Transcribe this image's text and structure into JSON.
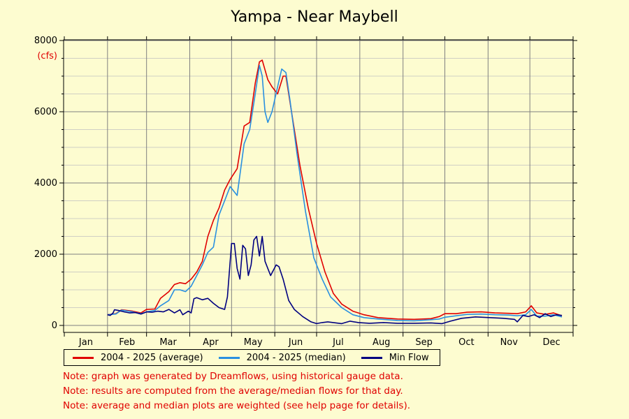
{
  "chart_data": {
    "type": "line",
    "title": "Yampa - Near Maybell",
    "unit_label": "(cfs)",
    "ylim": [
      0,
      8000
    ],
    "yticks": [
      0,
      2000,
      4000,
      6000,
      8000
    ],
    "ytick_labels": [
      "0",
      "2000",
      "4000",
      "6000",
      "8000"
    ],
    "x_domain_days": [
      1,
      366
    ],
    "months": [
      "Jan",
      "Feb",
      "Mar",
      "Apr",
      "May",
      "Jun",
      "Jul",
      "Aug",
      "Sep",
      "Oct",
      "Nov",
      "Dec"
    ],
    "grid": true,
    "legend_position": "bottom",
    "series": [
      {
        "name": "2004 - 2025 (average)",
        "color": "#e00000",
        "points": [
          [
            32,
            300
          ],
          [
            38,
            330
          ],
          [
            42,
            440
          ],
          [
            50,
            400
          ],
          [
            56,
            350
          ],
          [
            60,
            450
          ],
          [
            66,
            460
          ],
          [
            70,
            760
          ],
          [
            76,
            950
          ],
          [
            80,
            1150
          ],
          [
            84,
            1200
          ],
          [
            88,
            1170
          ],
          [
            92,
            1300
          ],
          [
            96,
            1500
          ],
          [
            100,
            1800
          ],
          [
            104,
            2500
          ],
          [
            108,
            2950
          ],
          [
            112,
            3300
          ],
          [
            116,
            3800
          ],
          [
            120,
            4100
          ],
          [
            125,
            4400
          ],
          [
            130,
            5600
          ],
          [
            134,
            5700
          ],
          [
            138,
            6800
          ],
          [
            141,
            7400
          ],
          [
            143,
            7450
          ],
          [
            147,
            6900
          ],
          [
            150,
            6700
          ],
          [
            154,
            6500
          ],
          [
            158,
            7000
          ],
          [
            160,
            7000
          ],
          [
            164,
            6000
          ],
          [
            170,
            4500
          ],
          [
            176,
            3300
          ],
          [
            182,
            2300
          ],
          [
            188,
            1500
          ],
          [
            194,
            900
          ],
          [
            200,
            600
          ],
          [
            208,
            400
          ],
          [
            216,
            300
          ],
          [
            226,
            220
          ],
          [
            240,
            180
          ],
          [
            252,
            170
          ],
          [
            264,
            190
          ],
          [
            270,
            250
          ],
          [
            274,
            330
          ],
          [
            282,
            330
          ],
          [
            290,
            370
          ],
          [
            300,
            380
          ],
          [
            310,
            350
          ],
          [
            320,
            340
          ],
          [
            326,
            330
          ],
          [
            332,
            380
          ],
          [
            336,
            550
          ],
          [
            340,
            350
          ],
          [
            346,
            310
          ],
          [
            352,
            350
          ],
          [
            358,
            270
          ]
        ]
      },
      {
        "name": "2004 - 2025 (median)",
        "color": "#2990e0",
        "points": [
          [
            32,
            300
          ],
          [
            38,
            320
          ],
          [
            42,
            430
          ],
          [
            50,
            380
          ],
          [
            56,
            330
          ],
          [
            60,
            380
          ],
          [
            66,
            420
          ],
          [
            70,
            550
          ],
          [
            76,
            700
          ],
          [
            80,
            1000
          ],
          [
            84,
            1000
          ],
          [
            88,
            950
          ],
          [
            92,
            1100
          ],
          [
            96,
            1400
          ],
          [
            100,
            1700
          ],
          [
            104,
            2050
          ],
          [
            108,
            2200
          ],
          [
            112,
            3100
          ],
          [
            116,
            3500
          ],
          [
            120,
            3900
          ],
          [
            125,
            3650
          ],
          [
            130,
            5100
          ],
          [
            134,
            5500
          ],
          [
            138,
            6500
          ],
          [
            141,
            7300
          ],
          [
            143,
            7000
          ],
          [
            145,
            6000
          ],
          [
            147,
            5700
          ],
          [
            150,
            6000
          ],
          [
            154,
            6700
          ],
          [
            157,
            7200
          ],
          [
            160,
            7100
          ],
          [
            163,
            6300
          ],
          [
            168,
            4800
          ],
          [
            174,
            3200
          ],
          [
            180,
            1900
          ],
          [
            186,
            1300
          ],
          [
            192,
            800
          ],
          [
            200,
            500
          ],
          [
            208,
            300
          ],
          [
            216,
            220
          ],
          [
            226,
            180
          ],
          [
            240,
            140
          ],
          [
            252,
            130
          ],
          [
            264,
            160
          ],
          [
            270,
            180
          ],
          [
            274,
            230
          ],
          [
            282,
            270
          ],
          [
            290,
            310
          ],
          [
            300,
            320
          ],
          [
            310,
            300
          ],
          [
            320,
            290
          ],
          [
            326,
            270
          ],
          [
            332,
            300
          ],
          [
            336,
            450
          ],
          [
            340,
            260
          ],
          [
            346,
            260
          ],
          [
            352,
            300
          ],
          [
            358,
            240
          ]
        ]
      },
      {
        "name": "Min Flow",
        "color": "#000080",
        "points": [
          [
            32,
            300
          ],
          [
            34,
            280
          ],
          [
            36,
            350
          ],
          [
            37,
            440
          ],
          [
            40,
            420
          ],
          [
            44,
            380
          ],
          [
            48,
            350
          ],
          [
            52,
            360
          ],
          [
            56,
            320
          ],
          [
            60,
            380
          ],
          [
            64,
            370
          ],
          [
            68,
            400
          ],
          [
            72,
            380
          ],
          [
            76,
            450
          ],
          [
            80,
            350
          ],
          [
            84,
            440
          ],
          [
            86,
            300
          ],
          [
            90,
            400
          ],
          [
            92,
            350
          ],
          [
            94,
            750
          ],
          [
            96,
            780
          ],
          [
            100,
            720
          ],
          [
            104,
            760
          ],
          [
            108,
            620
          ],
          [
            112,
            500
          ],
          [
            116,
            450
          ],
          [
            118,
            800
          ],
          [
            121,
            2300
          ],
          [
            123,
            2300
          ],
          [
            125,
            1600
          ],
          [
            127,
            1300
          ],
          [
            129,
            2250
          ],
          [
            131,
            2150
          ],
          [
            133,
            1400
          ],
          [
            135,
            1700
          ],
          [
            137,
            2400
          ],
          [
            139,
            2500
          ],
          [
            141,
            1950
          ],
          [
            143,
            2500
          ],
          [
            145,
            1800
          ],
          [
            147,
            1600
          ],
          [
            149,
            1400
          ],
          [
            151,
            1550
          ],
          [
            153,
            1700
          ],
          [
            155,
            1650
          ],
          [
            158,
            1300
          ],
          [
            162,
            700
          ],
          [
            166,
            450
          ],
          [
            172,
            250
          ],
          [
            178,
            100
          ],
          [
            182,
            50
          ],
          [
            186,
            80
          ],
          [
            190,
            100
          ],
          [
            194,
            80
          ],
          [
            200,
            50
          ],
          [
            206,
            120
          ],
          [
            212,
            80
          ],
          [
            220,
            60
          ],
          [
            230,
            80
          ],
          [
            240,
            60
          ],
          [
            252,
            60
          ],
          [
            264,
            70
          ],
          [
            272,
            50
          ],
          [
            278,
            120
          ],
          [
            286,
            200
          ],
          [
            296,
            240
          ],
          [
            306,
            220
          ],
          [
            316,
            200
          ],
          [
            324,
            170
          ],
          [
            326,
            100
          ],
          [
            330,
            280
          ],
          [
            334,
            250
          ],
          [
            338,
            300
          ],
          [
            342,
            220
          ],
          [
            346,
            330
          ],
          [
            350,
            250
          ],
          [
            354,
            300
          ],
          [
            358,
            280
          ]
        ]
      }
    ]
  },
  "legend": {
    "items": [
      {
        "label": "2004 - 2025 (average)",
        "color": "#e00000"
      },
      {
        "label": "2004 - 2025 (median)",
        "color": "#2990e0"
      },
      {
        "label": "Min Flow",
        "color": "#000080"
      }
    ]
  },
  "notes": [
    "Note: graph was generated by Dreamflows, using historical gauge data.",
    "Note: results are computed from the average/median flows for that day.",
    "Note: average and median plots are weighted (see help page for details)."
  ]
}
